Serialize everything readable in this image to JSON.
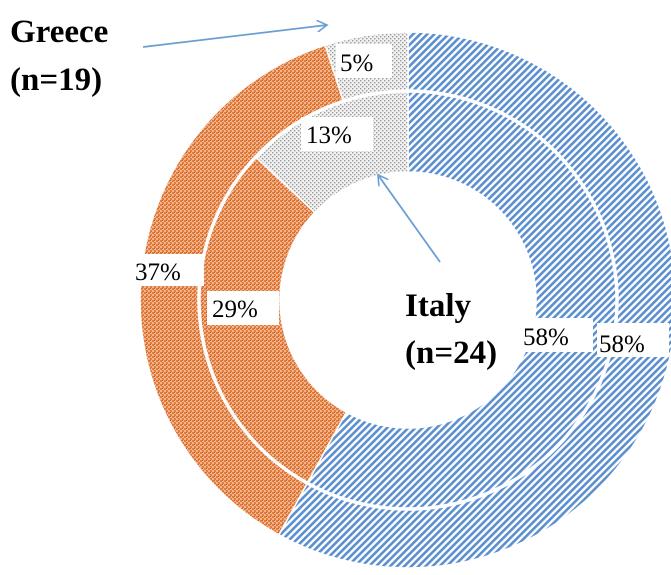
{
  "chart_data": {
    "type": "pie",
    "subtype": "double-donut",
    "colors": {
      "blue": "#5b8fd0",
      "orange": "#e07b3c",
      "gray": "#9a9a9a",
      "arrow": "#6a9fd4"
    },
    "rings": [
      {
        "name": "Greece",
        "label": "Greece",
        "count": "(n=19)",
        "ring": "outer",
        "slices": [
          {
            "value": 58,
            "label": "58%",
            "color": "#5b8fd0"
          },
          {
            "value": 37,
            "label": "37%",
            "color": "#e07b3c"
          },
          {
            "value": 5,
            "label": "5%",
            "color": "#9a9a9a"
          }
        ]
      },
      {
        "name": "Italy",
        "label": "Italy",
        "count": "(n=24)",
        "ring": "inner",
        "slices": [
          {
            "value": 58,
            "label": "58%",
            "color": "#5b8fd0"
          },
          {
            "value": 29,
            "label": "29%",
            "color": "#e07b3c"
          },
          {
            "value": 13,
            "label": "13%",
            "color": "#9a9a9a"
          }
        ]
      }
    ]
  }
}
